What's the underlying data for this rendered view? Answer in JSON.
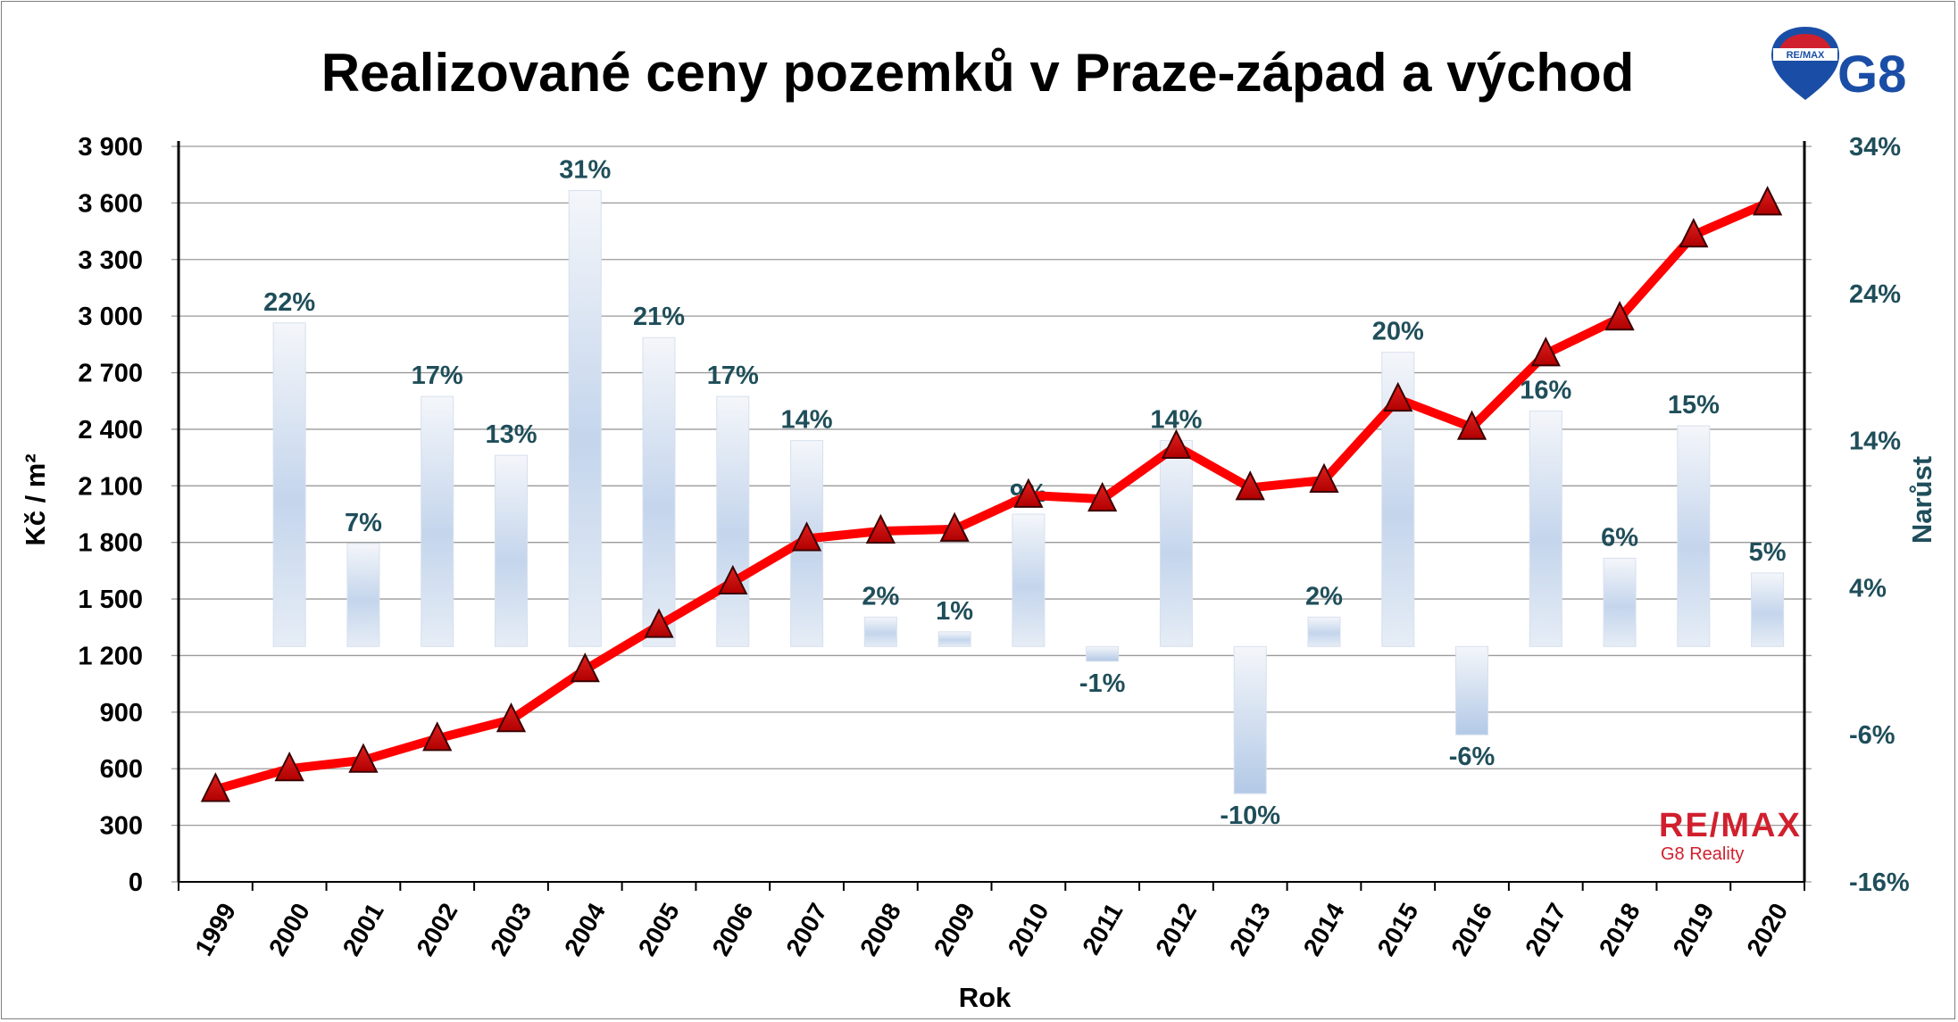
{
  "chart_data": {
    "type": "bar+line",
    "title": "Realizované ceny pozemků v Praze-západ a východ",
    "xlabel": "Rok",
    "ylabel_left": "Kč / m²",
    "ylabel_right": "Narůst",
    "ylim_left": [
      0,
      3900
    ],
    "ylim_right": [
      -16,
      34
    ],
    "yticks_left": [
      "0",
      "300",
      "600",
      "900",
      "1 200",
      "1 500",
      "1 800",
      "2 100",
      "2 400",
      "2 700",
      "3 000",
      "3 300",
      "3 600",
      "3 900"
    ],
    "yticks_right": [
      "-16%",
      "-6%",
      "4%",
      "14%",
      "24%",
      "34%"
    ],
    "categories": [
      "1999",
      "2000",
      "2001",
      "2002",
      "2003",
      "2004",
      "2005",
      "2006",
      "2007",
      "2008",
      "2009",
      "2010",
      "2011",
      "2012",
      "2013",
      "2014",
      "2015",
      "2016",
      "2017",
      "2018",
      "2019",
      "2020"
    ],
    "series": [
      {
        "type": "line",
        "axis": "left",
        "color": "#ff0000",
        "marker_color": "#cc0000",
        "values": [
          490,
          600,
          645,
          760,
          860,
          1125,
          1360,
          1590,
          1820,
          1860,
          1870,
          2050,
          2030,
          2310,
          2090,
          2130,
          2560,
          2410,
          2800,
          2990,
          3430,
          3600
        ]
      },
      {
        "type": "bar",
        "axis": "right",
        "values": [
          null,
          22,
          7,
          17,
          13,
          31,
          21,
          17,
          14,
          2,
          1,
          9,
          -1,
          14,
          -10,
          2,
          20,
          -6,
          16,
          6,
          15,
          5
        ],
        "labels": [
          "",
          "22%",
          "7%",
          "17%",
          "13%",
          "31%",
          "21%",
          "17%",
          "14%",
          "2%",
          "1%",
          "9%",
          "-1%",
          "14%",
          "-10%",
          "2%",
          "20%",
          "-6%",
          "16%",
          "6%",
          "15%",
          "5%"
        ]
      }
    ],
    "grid": true
  },
  "logo": {
    "remax_small": "RE/MAX",
    "g8": "G8",
    "brand": "RE/MAX",
    "brand_sub": "G8 Reality"
  },
  "colors": {
    "line": "#ff0000",
    "bar_top": "#f2f4f8",
    "bar_bottom": "#a9c3e3",
    "pct_label": "#1f4e5a"
  }
}
